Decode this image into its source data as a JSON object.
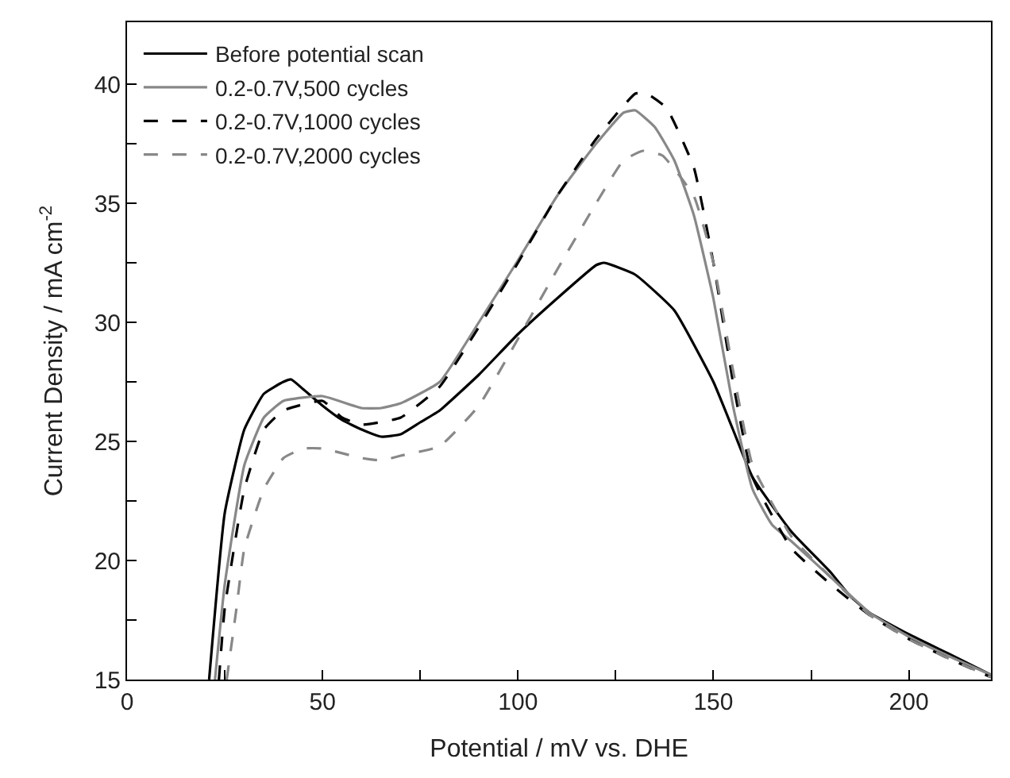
{
  "chart_data": {
    "type": "line",
    "xlabel": "Potential / mV vs. DHE",
    "ylabel": "Current Density / mA cm$^{-2}$",
    "xlim": [
      0,
      221
    ],
    "ylim": [
      15,
      42.6
    ],
    "xticks": [
      0,
      {
        "value": 25,
        "label": null
      },
      50,
      {
        "value": 75,
        "label": null
      },
      100,
      {
        "value": 125,
        "label": null
      },
      150,
      {
        "value": 175,
        "label": null
      },
      200
    ],
    "yticks": [
      15,
      {
        "value": 17.5,
        "label": null
      },
      20,
      {
        "value": 22.5,
        "label": null
      },
      25,
      {
        "value": 27.5,
        "label": null
      },
      30,
      {
        "value": 32.5,
        "label": null
      },
      35,
      {
        "value": 37.5,
        "label": null
      },
      40
    ],
    "legend": "top left",
    "marker": "none",
    "series": [
      {
        "name": "Before potential scan",
        "color": "#000000",
        "line_style": "solid",
        "x": [
          21,
          25,
          30,
          35,
          40,
          42,
          45,
          50,
          55,
          60,
          65,
          70,
          75,
          80,
          90,
          100,
          110,
          120,
          122,
          130,
          140,
          150,
          155,
          160,
          170,
          180,
          185,
          190,
          200,
          210,
          221
        ],
        "values": [
          15,
          22,
          25.5,
          27,
          27.5,
          27.6,
          27.2,
          26.5,
          25.9,
          25.5,
          25.2,
          25.3,
          25.8,
          26.3,
          27.8,
          29.5,
          31,
          32.4,
          32.5,
          32,
          30.5,
          27.5,
          25.5,
          23.5,
          21.2,
          19.5,
          18.5,
          17.8,
          16.9,
          16.1,
          15.2
        ]
      },
      {
        "name": "0.2-0.7V,500 cycles",
        "color": "#888888",
        "line_style": "solid",
        "x": [
          22.5,
          25,
          30,
          35,
          40,
          50,
          60,
          65,
          70,
          80,
          90,
          100,
          110,
          120,
          127,
          130,
          135,
          140,
          145,
          150,
          155,
          160,
          165,
          170,
          180,
          190,
          200,
          210,
          221
        ],
        "values": [
          15,
          19,
          24,
          26,
          26.7,
          26.9,
          26.4,
          26.4,
          26.6,
          27.5,
          30,
          32.6,
          35.3,
          37.5,
          38.8,
          38.9,
          38.2,
          36.8,
          34.5,
          31,
          26.5,
          23,
          21.5,
          20.8,
          19.3,
          17.8,
          16.8,
          16,
          15.2
        ]
      },
      {
        "name": "0.2-0.7V,1000 cycles",
        "color": "#000000",
        "line_style": "dashed",
        "x": [
          23.5,
          25,
          30,
          35,
          40,
          50,
          55,
          60,
          70,
          80,
          90,
          100,
          110,
          120,
          130,
          133,
          138,
          145,
          150,
          155,
          160,
          170,
          180,
          190,
          200,
          210,
          221
        ],
        "values": [
          15,
          18,
          23,
          25.5,
          26.3,
          26.7,
          26,
          25.7,
          26,
          27.3,
          29.8,
          32.5,
          35.3,
          37.7,
          39.6,
          39.6,
          39,
          36.5,
          32.5,
          27.5,
          23.5,
          20.5,
          19,
          17.7,
          16.7,
          15.9,
          15.1
        ]
      },
      {
        "name": "0.2-0.7V,2000 cycles",
        "color": "#888888",
        "line_style": "dashed",
        "x": [
          25.5,
          28,
          30,
          35,
          40,
          45,
          50,
          60,
          65,
          70,
          80,
          90,
          100,
          110,
          120,
          127,
          132,
          137,
          145,
          150,
          155,
          160,
          170,
          180,
          190,
          200,
          210,
          221
        ],
        "values": [
          15,
          18,
          20.5,
          23,
          24.3,
          24.7,
          24.7,
          24.3,
          24.2,
          24.4,
          24.8,
          26.5,
          29.3,
          32.2,
          35,
          36.8,
          37.2,
          37,
          35.3,
          32.5,
          28,
          24,
          21,
          19.3,
          17.7,
          16.7,
          15.9,
          15.1
        ]
      }
    ]
  }
}
